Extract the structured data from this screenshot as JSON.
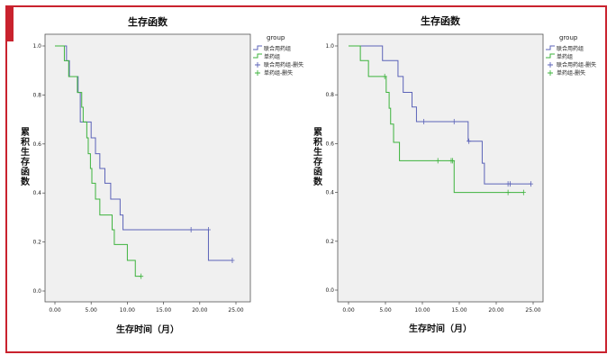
{
  "colors": {
    "frame": "#c9222e",
    "combined": "#5b63b8",
    "single": "#3db33d",
    "plot_bg": "#f0f0f0"
  },
  "chart_data": [
    {
      "type": "line",
      "title": "生存函数",
      "xlabel": "生存时间（月）",
      "ylabel": "累积生存函数",
      "xlim": [
        0,
        25
      ],
      "ylim": [
        0,
        1
      ],
      "xticks": [
        "0.00",
        "5.00",
        "10.00",
        "15.00",
        "20.00",
        "25.00"
      ],
      "yticks": [
        "0.0",
        "0.2",
        "0.4",
        "0.6",
        "0.8",
        "1.0"
      ],
      "legend_title": "group",
      "legend_entries": [
        "联合用药组",
        "单药组",
        "联合用药组-删失",
        "单药组-删失"
      ],
      "legend_position": "right",
      "series": [
        {
          "name": "联合用药组",
          "color": "combined",
          "steps": [
            [
              0,
              1
            ],
            [
              1.6,
              0.94
            ],
            [
              2.0,
              0.875
            ],
            [
              3.2,
              0.81
            ],
            [
              3.5,
              0.69
            ],
            [
              5.0,
              0.625
            ],
            [
              5.6,
              0.56
            ],
            [
              6.2,
              0.5
            ],
            [
              6.9,
              0.44
            ],
            [
              7.7,
              0.375
            ],
            [
              9.0,
              0.31
            ],
            [
              9.4,
              0.25
            ],
            [
              21.2,
              0.125
            ],
            [
              24.5,
              0.125
            ]
          ],
          "censored": [
            [
              18.8,
              0.25
            ],
            [
              21.2,
              0.25
            ],
            [
              24.5,
              0.125
            ]
          ]
        },
        {
          "name": "单药组",
          "color": "single",
          "steps": [
            [
              0,
              1
            ],
            [
              1.3,
              0.94
            ],
            [
              1.9,
              0.875
            ],
            [
              3.1,
              0.81
            ],
            [
              3.7,
              0.75
            ],
            [
              3.9,
              0.69
            ],
            [
              4.4,
              0.625
            ],
            [
              4.6,
              0.56
            ],
            [
              4.9,
              0.5
            ],
            [
              5.1,
              0.44
            ],
            [
              5.6,
              0.375
            ],
            [
              6.2,
              0.31
            ],
            [
              7.9,
              0.25
            ],
            [
              8.2,
              0.19
            ],
            [
              10.0,
              0.125
            ],
            [
              11.1,
              0.06
            ],
            [
              11.9,
              0.06
            ]
          ],
          "censored": [
            [
              11.9,
              0.06
            ]
          ]
        }
      ]
    },
    {
      "type": "line",
      "title": "生存函数",
      "xlabel": "生存时间（月）",
      "ylabel": "累积生存函数",
      "xlim": [
        0,
        25
      ],
      "ylim": [
        0,
        1
      ],
      "xticks": [
        "0.00",
        "5.00",
        "10.00",
        "15.00",
        "20.00",
        "25.00"
      ],
      "yticks": [
        "0.0",
        "0.2",
        "0.4",
        "0.6",
        "0.8",
        "1.0"
      ],
      "legend_title": "group",
      "legend_entries": [
        "联合用药组",
        "单药组",
        "联合用药组-删失",
        "单药组-删失"
      ],
      "legend_position": "right",
      "series": [
        {
          "name": "联合用药组",
          "color": "combined",
          "steps": [
            [
              0,
              1
            ],
            [
              4.6,
              0.94
            ],
            [
              6.7,
              0.875
            ],
            [
              7.4,
              0.81
            ],
            [
              8.6,
              0.75
            ],
            [
              9.2,
              0.69
            ],
            [
              16.2,
              0.61
            ],
            [
              18.1,
              0.52
            ],
            [
              18.4,
              0.435
            ],
            [
              24.7,
              0.435
            ]
          ],
          "censored": [
            [
              10.2,
              0.69
            ],
            [
              14.3,
              0.69
            ],
            [
              16.3,
              0.61
            ],
            [
              21.6,
              0.435
            ],
            [
              21.9,
              0.435
            ],
            [
              24.7,
              0.435
            ]
          ]
        },
        {
          "name": "单药组",
          "color": "single",
          "steps": [
            [
              0,
              1
            ],
            [
              1.6,
              0.94
            ],
            [
              2.7,
              0.875
            ],
            [
              5.1,
              0.81
            ],
            [
              5.5,
              0.745
            ],
            [
              5.7,
              0.68
            ],
            [
              6.1,
              0.605
            ],
            [
              6.9,
              0.53
            ],
            [
              14.3,
              0.4
            ],
            [
              23.7,
              0.4
            ]
          ],
          "censored": [
            [
              4.9,
              0.875
            ],
            [
              12.1,
              0.53
            ],
            [
              13.9,
              0.53
            ],
            [
              14.1,
              0.53
            ],
            [
              21.6,
              0.4
            ],
            [
              23.7,
              0.4
            ]
          ]
        }
      ]
    }
  ]
}
